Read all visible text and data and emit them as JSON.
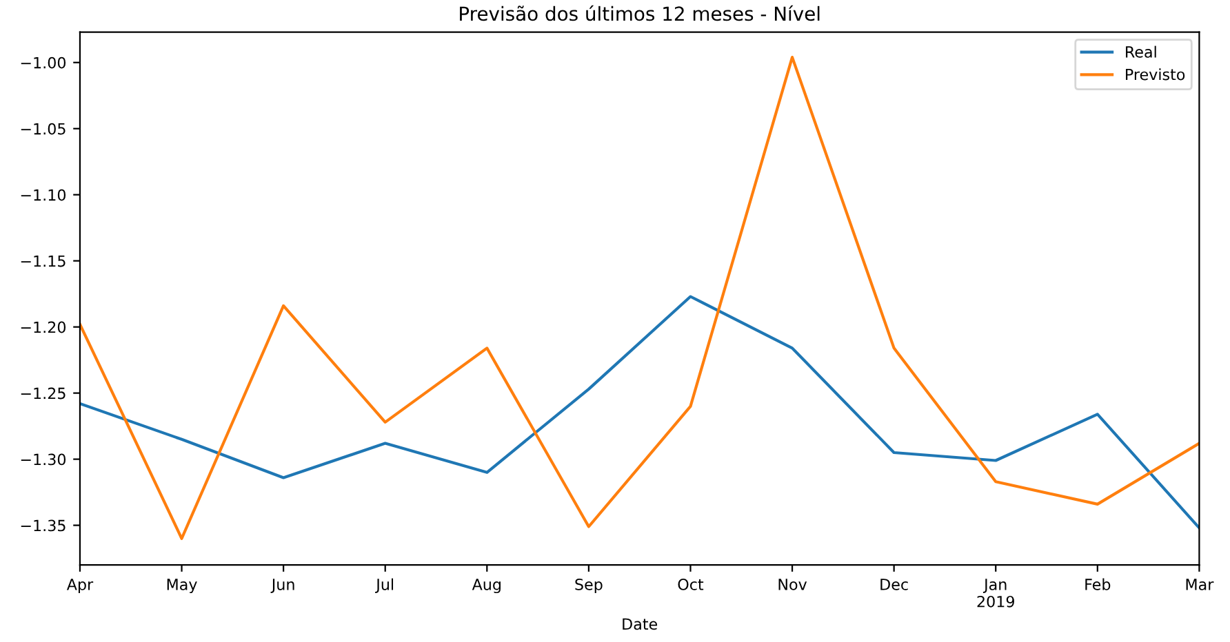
{
  "chart_data": {
    "type": "line",
    "title": "Previsão dos últimos 12 meses - Nível",
    "xlabel": "Date",
    "categories": [
      "Apr",
      "May",
      "Jun",
      "Jul",
      "Aug",
      "Sep",
      "Oct",
      "Nov",
      "Dec",
      "Jan\n2019",
      "Feb",
      "Mar"
    ],
    "series": [
      {
        "name": "Real",
        "color": "#1f77b4",
        "values": [
          -1.258,
          -1.285,
          -1.314,
          -1.288,
          -1.31,
          -1.247,
          -1.177,
          -1.216,
          -1.295,
          -1.301,
          -1.266,
          -1.352
        ]
      },
      {
        "name": "Previsto",
        "color": "#ff7f0e",
        "values": [
          -1.198,
          -1.36,
          -1.184,
          -1.272,
          -1.216,
          -1.351,
          -1.26,
          -0.996,
          -1.216,
          -1.317,
          -1.334,
          -1.288
        ]
      }
    ],
    "ylim": [
      -1.38,
      -0.977
    ],
    "yticks": [
      {
        "value": -1.0,
        "label": "−1.00"
      },
      {
        "value": -1.05,
        "label": "−1.05"
      },
      {
        "value": -1.1,
        "label": "−1.10"
      },
      {
        "value": -1.15,
        "label": "−1.15"
      },
      {
        "value": -1.2,
        "label": "−1.20"
      },
      {
        "value": -1.25,
        "label": "−1.25"
      },
      {
        "value": -1.3,
        "label": "−1.30"
      },
      {
        "value": -1.35,
        "label": "−1.35"
      }
    ],
    "legend": "top right",
    "grid": false,
    "marker": "none",
    "line_style": "solid"
  }
}
